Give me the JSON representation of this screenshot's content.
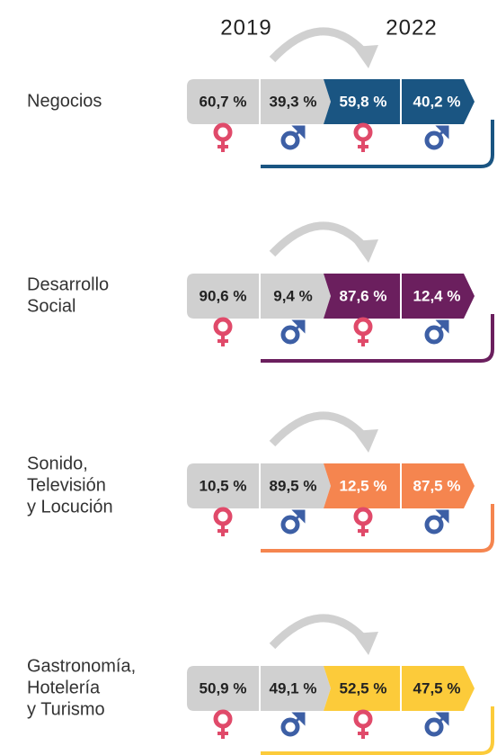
{
  "years": [
    "2019",
    "2022"
  ],
  "rows": [
    {
      "label": [
        "Negocios"
      ],
      "values": [
        "60,7 %",
        "39,3 %",
        "59,8 %",
        "40,2 %"
      ],
      "color": "#1a5582"
    },
    {
      "label": [
        "Desarrollo",
        "Social"
      ],
      "values": [
        "90,6 %",
        "9,4 %",
        "87,6 %",
        "12,4 %"
      ],
      "color": "#6b1f5e"
    },
    {
      "label": [
        "Sonido,",
        "Televisión",
        "y Locución"
      ],
      "values": [
        "10,5 %",
        "89,5 %",
        "12,5 %",
        "87,5 %"
      ],
      "color": "#f5854f"
    },
    {
      "label": [
        "Gastronomía,",
        "Hotelería",
        "y Turismo"
      ],
      "values": [
        "50,9 %",
        "49,1 %",
        "52,5 %",
        "47,5 %"
      ],
      "color": "#fccb3a"
    }
  ]
}
